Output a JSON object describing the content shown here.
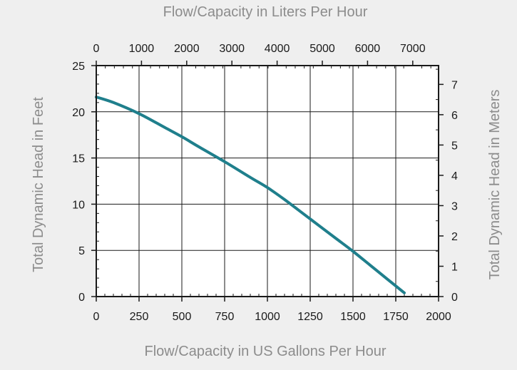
{
  "chart_data": {
    "type": "line",
    "title": "",
    "xlabel": "Flow/Capacity in US Gallons Per Hour",
    "x2label": "Flow/Capacity in Liters Per Hour",
    "ylabel": "Total Dynamic Head in Feet",
    "y2label": "Total Dynamic Head in Meters",
    "xlim": [
      0,
      2000
    ],
    "ylim": [
      0,
      25
    ],
    "x2lim": [
      0,
      7570.8
    ],
    "y2lim": [
      0,
      7.62
    ],
    "xticks": [
      "0",
      "250",
      "500",
      "750",
      "1000",
      "1250",
      "1500",
      "1750",
      "2000"
    ],
    "yticks": [
      "0",
      "5",
      "10",
      "15",
      "20",
      "25"
    ],
    "x2ticks": [
      "0",
      "1000",
      "2000",
      "3000",
      "4000",
      "5000",
      "6000",
      "7000"
    ],
    "y2ticks": [
      "0",
      "1",
      "2",
      "3",
      "4",
      "5",
      "6",
      "7"
    ],
    "grid": true,
    "line_color": "#1f7f8c",
    "series": [
      {
        "x": [
          0,
          100,
          250,
          400,
          500,
          600,
          750,
          900,
          1000,
          1100,
          1250,
          1400,
          1500,
          1600,
          1700,
          1800
        ],
        "y": [
          21.6,
          21.0,
          19.8,
          18.3,
          17.3,
          16.2,
          14.6,
          12.9,
          11.8,
          10.5,
          8.4,
          6.3,
          4.9,
          3.4,
          1.9,
          0.4
        ]
      }
    ]
  }
}
